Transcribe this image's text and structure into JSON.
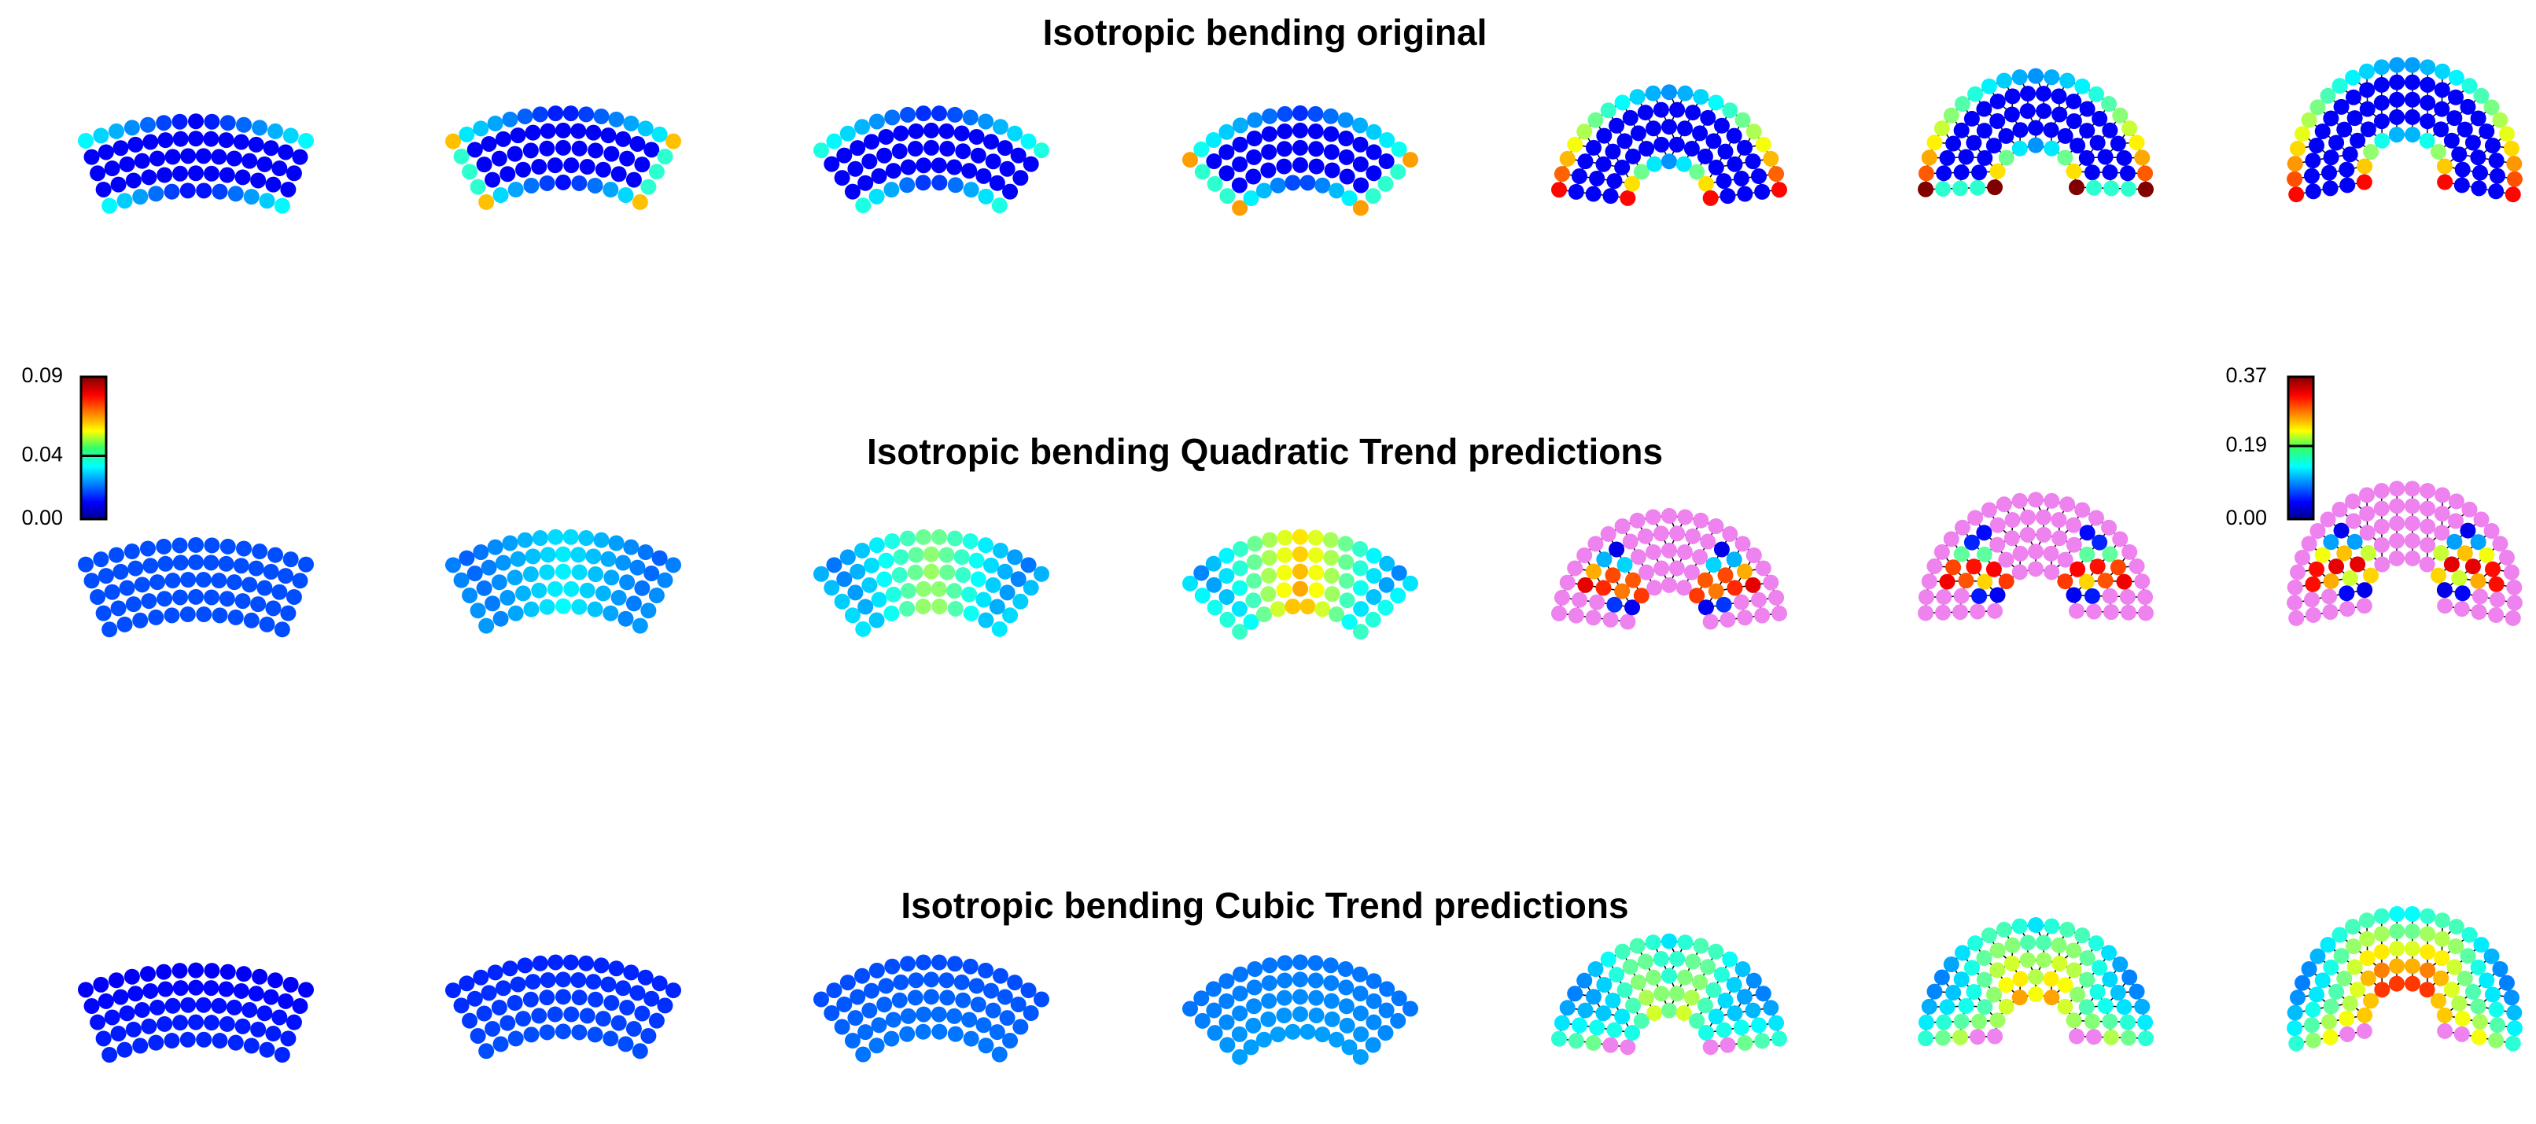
{
  "rows": [
    {
      "title": "Isotropic bending original"
    },
    {
      "title": "Isotropic bending Quadratic Trend predictions"
    },
    {
      "title": "Isotropic bending Cubic Trend predictions"
    }
  ],
  "colorbars": [
    {
      "ticks": [
        {
          "value": 0,
          "label": "0.00"
        },
        0.04,
        0.09
      ]
    },
    {
      "ticks": [
        {
          "value": 0,
          "label": "0.00"
        },
        0.19,
        0.37
      ]
    }
  ]
}
